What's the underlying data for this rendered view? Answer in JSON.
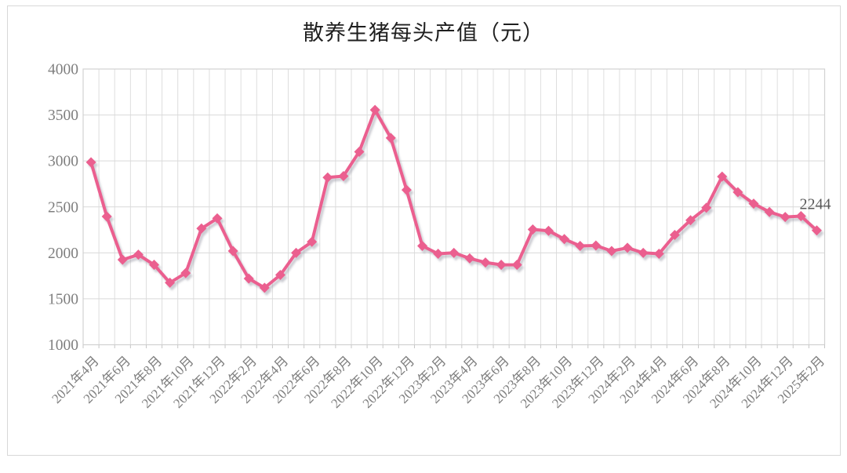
{
  "chart_data": {
    "type": "line",
    "title": "散养生猪每头产值（元）",
    "series_name": "散养生猪每头产值",
    "unit": "元",
    "ylim": [
      1000,
      4000
    ],
    "ytick_step": 500,
    "yticks": [
      4000,
      3500,
      3000,
      2500,
      2000,
      1500,
      1000
    ],
    "grid": true,
    "line_color": "#eb5f8f",
    "marker": "diamond",
    "axis_text_color": "#7f7f7f",
    "last_point_label": "2244",
    "last_point_label_color": "#595959",
    "x": [
      "2021年4月",
      "2021年5月",
      "2021年6月",
      "2021年7月",
      "2021年8月",
      "2021年9月",
      "2021年10月",
      "2021年11月",
      "2021年12月",
      "2022年1月",
      "2022年2月",
      "2022年3月",
      "2022年4月",
      "2022年5月",
      "2022年6月",
      "2022年7月",
      "2022年8月",
      "2022年9月",
      "2022年10月",
      "2022年11月",
      "2022年12月",
      "2023年1月",
      "2023年2月",
      "2023年3月",
      "2023年4月",
      "2023年5月",
      "2023年6月",
      "2023年7月",
      "2023年8月",
      "2023年9月",
      "2023年10月",
      "2023年11月",
      "2023年12月",
      "2024年1月",
      "2024年2月",
      "2024年3月",
      "2024年4月",
      "2024年5月",
      "2024年6月",
      "2024年7月",
      "2024年8月",
      "2024年9月",
      "2024年10月",
      "2024年11月",
      "2024年12月",
      "2025年1月",
      "2025年2月"
    ],
    "values": [
      2985,
      2395,
      1925,
      1980,
      1870,
      1675,
      1780,
      2265,
      2375,
      2020,
      1720,
      1620,
      1760,
      2000,
      2120,
      2820,
      2835,
      3100,
      3555,
      3250,
      2685,
      2075,
      1990,
      2000,
      1940,
      1895,
      1870,
      1870,
      2255,
      2240,
      2150,
      2075,
      2080,
      2020,
      2055,
      2000,
      1990,
      2195,
      2355,
      2490,
      2830,
      2660,
      2535,
      2445,
      2390,
      2400,
      2244
    ],
    "visible_x_labels": [
      "2021年4月",
      "2021年6月",
      "2021年8月",
      "2021年10月",
      "2021年12月",
      "2022年2月",
      "2022年4月",
      "2022年6月",
      "2022年8月",
      "2022年10月",
      "2022年12月",
      "2023年2月",
      "2023年4月",
      "2023年6月",
      "2023年8月",
      "2023年10月",
      "2023年12月",
      "2024年2月",
      "2024年4月",
      "2024年6月",
      "2024年8月",
      "2024年10月",
      "2024年12月",
      "2025年2月"
    ],
    "x_label_interval": 2
  }
}
